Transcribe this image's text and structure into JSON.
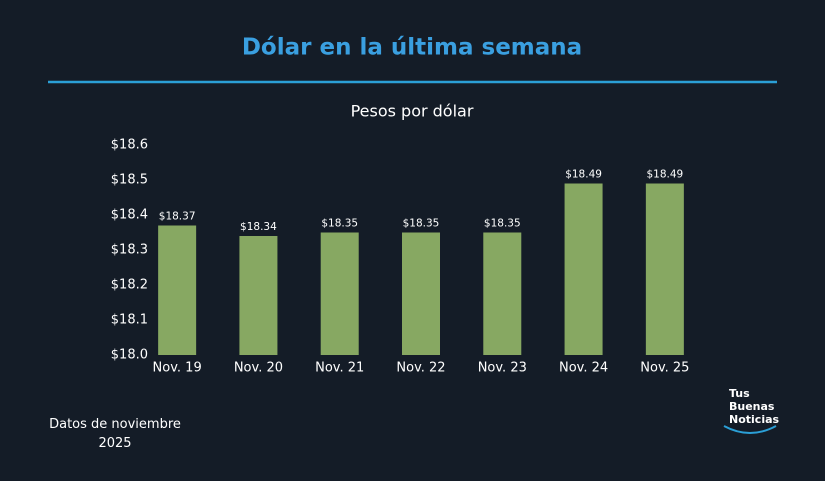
{
  "chart_data": {
    "type": "bar",
    "title": "Dólar en la última semana",
    "subtitle": "Pesos por dólar",
    "categories": [
      "Nov. 19",
      "Nov. 20",
      "Nov. 21",
      "Nov. 22",
      "Nov. 23",
      "Nov. 24",
      "Nov. 25"
    ],
    "values": [
      18.37,
      18.34,
      18.35,
      18.35,
      18.35,
      18.49,
      18.49
    ],
    "value_labels": [
      "$18.37",
      "$18.34",
      "$18.35",
      "$18.35",
      "$18.35",
      "$18.49",
      "$18.49"
    ],
    "color": "#87a862",
    "ylim": [
      18.0,
      18.6
    ],
    "yticks": [
      {
        "value": 18.0,
        "label": "$18.0"
      },
      {
        "value": 18.1,
        "label": "$18.1"
      },
      {
        "value": 18.2,
        "label": "$18.2"
      },
      {
        "value": 18.3,
        "label": "$18.3"
      },
      {
        "value": 18.4,
        "label": "$18.4"
      },
      {
        "value": 18.5,
        "label": "$18.5"
      },
      {
        "value": 18.6,
        "label": "$18.6"
      }
    ],
    "grid": false
  },
  "footnote": "Datos de noviembre 2025",
  "logo": [
    "Tus",
    "Buenas",
    "Noticias"
  ]
}
